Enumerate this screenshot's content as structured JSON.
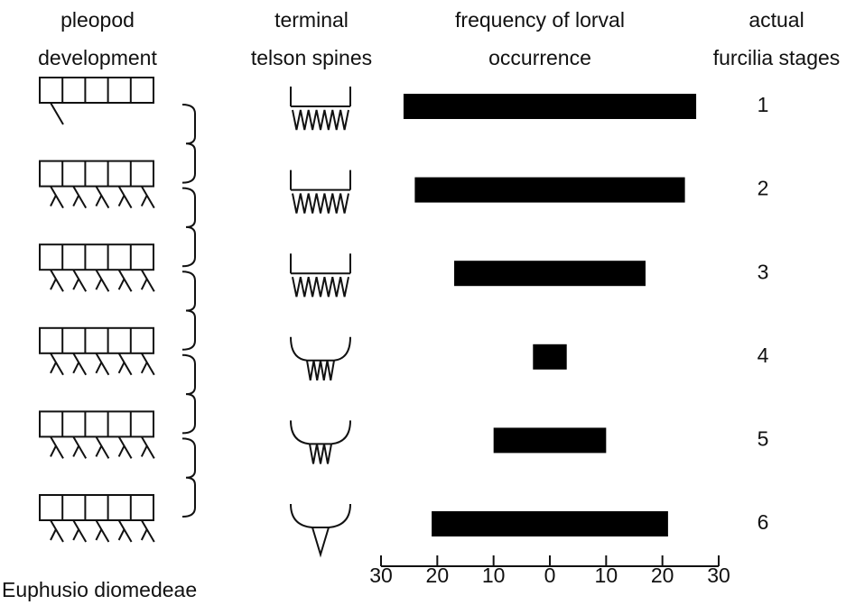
{
  "chart_data": {
    "type": "bar",
    "column_headers": [
      [
        "pleopod",
        "development"
      ],
      [
        "terminal",
        "telson spines"
      ],
      [
        "frequency of lorval",
        "occurrence"
      ],
      [
        "actual",
        "furcilia stages"
      ]
    ],
    "categories": [
      "1",
      "2",
      "3",
      "4",
      "5",
      "6"
    ],
    "values": [
      26,
      24,
      17,
      3,
      10,
      21
    ],
    "color": "#000000",
    "xlim": [
      -30,
      30
    ],
    "xticks": [
      {
        "value": -30,
        "label": "30"
      },
      {
        "value": -20,
        "label": "20"
      },
      {
        "value": -10,
        "label": "10"
      },
      0,
      10,
      {
        "value": 20,
        "label": "20"
      },
      {
        "value": 30,
        "label": "30"
      }
    ],
    "caption": "Euphusio diomedeae"
  }
}
